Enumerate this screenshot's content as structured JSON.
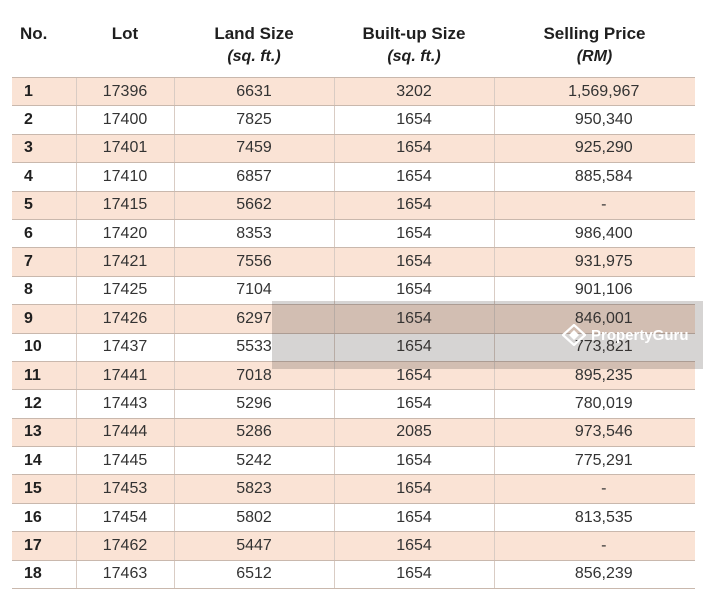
{
  "headers": {
    "no": "No.",
    "lot": "Lot",
    "land_size": "Land Size",
    "land_size_unit": "(sq. ft.)",
    "built_up_size": "Built-up Size",
    "built_up_size_unit": "(sq. ft.)",
    "selling_price": "Selling Price",
    "selling_price_unit": "(RM)"
  },
  "rows": [
    {
      "no": "1",
      "lot": "17396",
      "land": "6631",
      "built": "3202",
      "price": "1,569,967"
    },
    {
      "no": "2",
      "lot": "17400",
      "land": "7825",
      "built": "1654",
      "price": "950,340"
    },
    {
      "no": "3",
      "lot": "17401",
      "land": "7459",
      "built": "1654",
      "price": "925,290"
    },
    {
      "no": "4",
      "lot": "17410",
      "land": "6857",
      "built": "1654",
      "price": "885,584"
    },
    {
      "no": "5",
      "lot": "17415",
      "land": "5662",
      "built": "1654",
      "price": "-"
    },
    {
      "no": "6",
      "lot": "17420",
      "land": "8353",
      "built": "1654",
      "price": "986,400"
    },
    {
      "no": "7",
      "lot": "17421",
      "land": "7556",
      "built": "1654",
      "price": "931,975"
    },
    {
      "no": "8",
      "lot": "17425",
      "land": "7104",
      "built": "1654",
      "price": "901,106"
    },
    {
      "no": "9",
      "lot": "17426",
      "land": "6297",
      "built": "1654",
      "price": "846,001"
    },
    {
      "no": "10",
      "lot": "17437",
      "land": "5533",
      "built": "1654",
      "price": "773,821"
    },
    {
      "no": "11",
      "lot": "17441",
      "land": "7018",
      "built": "1654",
      "price": "895,235"
    },
    {
      "no": "12",
      "lot": "17443",
      "land": "5296",
      "built": "1654",
      "price": "780,019"
    },
    {
      "no": "13",
      "lot": "17444",
      "land": "5286",
      "built": "2085",
      "price": "973,546"
    },
    {
      "no": "14",
      "lot": "17445",
      "land": "5242",
      "built": "1654",
      "price": "775,291"
    },
    {
      "no": "15",
      "lot": "17453",
      "land": "5823",
      "built": "1654",
      "price": "-"
    },
    {
      "no": "16",
      "lot": "17454",
      "land": "5802",
      "built": "1654",
      "price": "813,535"
    },
    {
      "no": "17",
      "lot": "17462",
      "land": "5447",
      "built": "1654",
      "price": "-"
    },
    {
      "no": "18",
      "lot": "17463",
      "land": "6512",
      "built": "1654",
      "price": "856,239"
    }
  ],
  "watermark": {
    "brand": "PropertyGuru",
    "icon": "propertyguru-logo-icon"
  }
}
